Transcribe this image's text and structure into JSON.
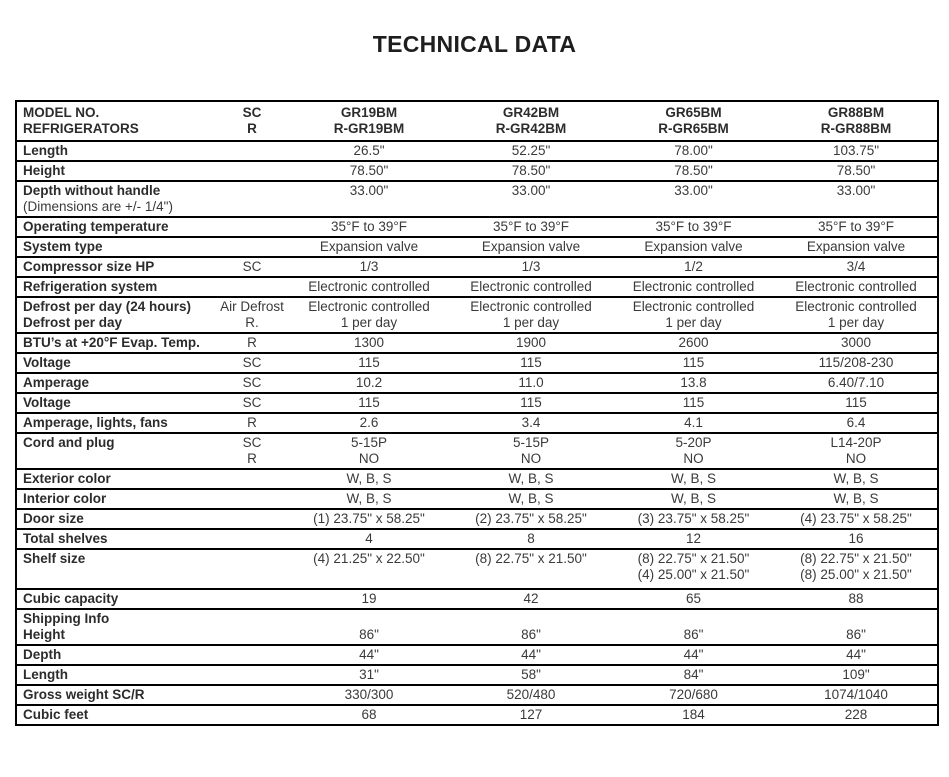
{
  "title": "TECHNICAL DATA",
  "table": {
    "header": {
      "model_no": "MODEL NO.",
      "refrigerators": "REFRIGERATORS",
      "sc": "SC",
      "r": "R",
      "models": [
        {
          "name": "GR19BM",
          "sub": "R-GR19BM"
        },
        {
          "name": "GR42BM",
          "sub": "R-GR42BM"
        },
        {
          "name": "GR65BM",
          "sub": "R-GR65BM"
        },
        {
          "name": "GR88BM",
          "sub": "R-GR88BM"
        }
      ]
    },
    "rows": [
      {
        "label": "Length",
        "sc": "",
        "values": [
          "26.5\"",
          "52.25\"",
          "78.00\"",
          "103.75\""
        ]
      },
      {
        "label": "Height",
        "sc": "",
        "values": [
          "78.50\"",
          "78.50\"",
          "78.50\"",
          "78.50\""
        ]
      },
      {
        "label": "Depth without handle",
        "sub": "(Dimensions are +/- 1/4\")",
        "sub_bold": false,
        "sc": "",
        "values": [
          "33.00\"",
          "33.00\"",
          "33.00\"",
          "33.00\""
        ]
      },
      {
        "label": "Operating temperature",
        "sc": "",
        "values": [
          "35°F to 39°F",
          "35°F to 39°F",
          "35°F to 39°F",
          "35°F to 39°F"
        ]
      },
      {
        "label": "System type",
        "sc": "",
        "values": [
          "Expansion valve",
          "Expansion valve",
          "Expansion valve",
          "Expansion valve"
        ]
      },
      {
        "label": "Compressor size HP",
        "sc": "SC",
        "values": [
          "1/3",
          "1/3",
          "1/2",
          "3/4"
        ]
      },
      {
        "label": "Refrigeration system",
        "sc": "",
        "values": [
          "Electronic controlled",
          "Electronic controlled",
          "Electronic controlled",
          "Electronic controlled"
        ]
      },
      {
        "label": "Defrost per day (24 hours)",
        "sub": "Defrost per day",
        "sub_bold": true,
        "sc": [
          "Air Defrost",
          "R."
        ],
        "values": [
          [
            "Electronic controlled",
            "1 per day"
          ],
          [
            "Electronic controlled",
            "1 per day"
          ],
          [
            "Electronic controlled",
            "1 per day"
          ],
          [
            "Electronic controlled",
            "1 per day"
          ]
        ]
      },
      {
        "label": "BTU’s at +20°F Evap. Temp.",
        "sc": "R",
        "values": [
          "1300",
          "1900",
          "2600",
          "3000"
        ]
      },
      {
        "label": "Voltage",
        "sc": "SC",
        "values": [
          "115",
          "115",
          "115",
          "115/208-230"
        ]
      },
      {
        "label": "Amperage",
        "sc": "SC",
        "values": [
          "10.2",
          "11.0",
          "13.8",
          "6.40/7.10"
        ]
      },
      {
        "label": "Voltage",
        "sc": "SC",
        "values": [
          "115",
          "115",
          "115",
          "115"
        ]
      },
      {
        "label": "Amperage, lights, fans",
        "sc": "R",
        "values": [
          "2.6",
          "3.4",
          "4.1",
          "6.4"
        ]
      },
      {
        "label": "Cord and plug",
        "sc": [
          "SC",
          "R"
        ],
        "values": [
          [
            "5-15P",
            "NO"
          ],
          [
            "5-15P",
            "NO"
          ],
          [
            "5-20P",
            "NO"
          ],
          [
            "L14-20P",
            "NO"
          ]
        ]
      },
      {
        "label": "Exterior color",
        "sc": "",
        "values": [
          "W, B, S",
          "W, B, S",
          "W, B, S",
          "W, B, S"
        ]
      },
      {
        "label": "Interior color",
        "sc": "",
        "values": [
          "W, B, S",
          "W, B, S",
          "W, B, S",
          "W, B, S"
        ]
      },
      {
        "label": "Door size",
        "sc": "",
        "values": [
          "(1) 23.75\" x 58.25\"",
          "(2) 23.75\" x 58.25\"",
          "(3) 23.75\" x 58.25\"",
          "(4) 23.75\" x 58.25\""
        ]
      },
      {
        "label": "Total shelves",
        "sc": "",
        "values": [
          "4",
          "8",
          "12",
          "16"
        ]
      },
      {
        "label": "Shelf size",
        "tall": true,
        "sc": "",
        "values": [
          "(4) 21.25\" x 22.50\"",
          "(8) 22.75\" x 21.50\"",
          [
            "(8) 22.75\" x 21.50\"",
            "(4) 25.00\" x 21.50\""
          ],
          [
            "(8) 22.75\" x 21.50\"",
            "(8) 25.00\" x 21.50\""
          ]
        ]
      },
      {
        "label": "Cubic capacity",
        "sc": "",
        "values": [
          "19",
          "42",
          "65",
          "88"
        ]
      },
      {
        "label": "Shipping Info",
        "sub": "Height",
        "sub_bold": true,
        "sc": "",
        "values": [
          [
            "",
            "86\""
          ],
          [
            "",
            "86\""
          ],
          [
            "",
            "86\""
          ],
          [
            "",
            "86\""
          ]
        ]
      },
      {
        "label": "Depth",
        "sc": "",
        "values": [
          "44\"",
          "44\"",
          "44\"",
          "44\""
        ]
      },
      {
        "label": "Length",
        "sc": "",
        "values": [
          "31\"",
          "58\"",
          "84\"",
          "109\""
        ]
      },
      {
        "label": "Gross weight SC/R",
        "sc": "",
        "values": [
          "330/300",
          "520/480",
          "720/680",
          "1074/1040"
        ]
      },
      {
        "label": "Cubic feet",
        "sc": "",
        "values": [
          "68",
          "127",
          "184",
          "228"
        ]
      }
    ]
  }
}
